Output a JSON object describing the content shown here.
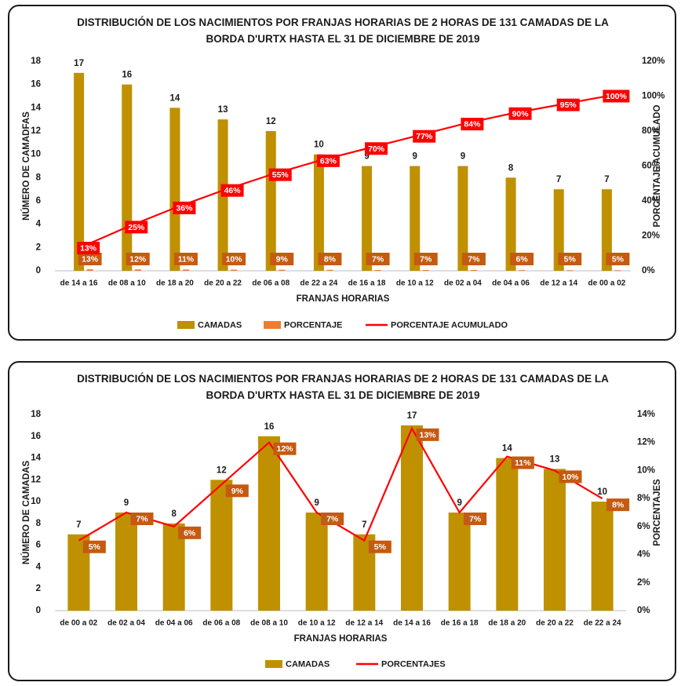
{
  "charts": [
    {
      "title": "DISTRIBUCIÓN DE LOS NACIMIENTOS POR FRANJAS HORARIAS DE 2 HORAS DE 131 CAMADAS DE LA BORDA D'URTX HASTA EL 31 DE DICIEMBRE DE 2019",
      "xlabel": "FRANJAS HORARIAS",
      "ylabel_left": "NÚMERO DE CAMADFAS",
      "ylabel_right": "PORCENTAJE ACUMULADO",
      "legend": [
        "CAMADAS",
        "PORCENTAJE",
        "PORCENTAJE ACUMULADO"
      ]
    },
    {
      "title": "DISTRIBUCIÓN DE LOS NACIMIENTOS POR FRANJAS HORARIAS DE 2 HORAS DE 131 CAMADAS DE LA BORDA D'URTX  HASTA EL 31 DE DICIEMBRE DE 2019",
      "xlabel": "FRANJAS HORARIAS",
      "ylabel_left": "NÚMERO DE CAMADAS",
      "ylabel_right": "PORCENTAJES",
      "legend": [
        "CAMADAS",
        "PORCENTAJES"
      ]
    }
  ],
  "colors": {
    "bar": "#bf9000",
    "pct_bar": "#ed7d31",
    "line": "#ff0000",
    "pct_label_bg": "#c55a11",
    "cum_label_bg": "#ff0000"
  },
  "chart_data": [
    {
      "type": "bar",
      "categories": [
        "de 14 a 16",
        "de 08 a 10",
        "de 18 a 20",
        "de 20 a 22",
        "de 06 a 08",
        "de 22 a 24",
        "de 16 a 18",
        "de 10 a 12",
        "de 02 a 04",
        "de 04 a 06",
        "de 12 a 14",
        "de 00 a 02"
      ],
      "series": [
        {
          "name": "CAMADAS",
          "type": "bar",
          "axis": "left",
          "values": [
            17,
            16,
            14,
            13,
            12,
            10,
            9,
            9,
            9,
            8,
            7,
            7
          ],
          "labels": [
            "17",
            "16",
            "14",
            "13",
            "12",
            "10",
            "9",
            "9",
            "9",
            "8",
            "7",
            "7"
          ]
        },
        {
          "name": "PORCENTAJE",
          "type": "bar",
          "axis": "left",
          "values": [
            0.13,
            0.12,
            0.11,
            0.1,
            0.09,
            0.08,
            0.07,
            0.07,
            0.07,
            0.06,
            0.05,
            0.05
          ],
          "labels": [
            "13%",
            "12%",
            "11%",
            "10%",
            "9%",
            "8%",
            "7%",
            "7%",
            "7%",
            "6%",
            "5%",
            "5%"
          ]
        },
        {
          "name": "PORCENTAJE ACUMULADO",
          "type": "line",
          "axis": "right",
          "values": [
            13,
            25,
            36,
            46,
            55,
            63,
            70,
            77,
            84,
            90,
            95,
            100
          ],
          "labels": [
            "13%",
            "25%",
            "36%",
            "46%",
            "55%",
            "63%",
            "70%",
            "77%",
            "84%",
            "90%",
            "95%",
            "100%"
          ]
        }
      ],
      "ylim_left": [
        0,
        18
      ],
      "yticks_left": [
        "0",
        "2",
        "4",
        "6",
        "8",
        "10",
        "12",
        "14",
        "16",
        "18"
      ],
      "ylim_right": [
        0,
        120
      ],
      "yticks_right": [
        "0%",
        "20%",
        "40%",
        "60%",
        "80%",
        "100%",
        "120%"
      ],
      "grid": false,
      "legend_position": "bottom"
    },
    {
      "type": "bar",
      "categories": [
        "de 00 a 02",
        "de 02 a 04",
        "de 04 a 06",
        "de 06 a 08",
        "de 08 a 10",
        "de 10 a 12",
        "de 12 a 14",
        "de 14 a 16",
        "de 16 a 18",
        "de 18 a 20",
        "de 20 a 22",
        "de 22 a 24"
      ],
      "series": [
        {
          "name": "CAMADAS",
          "type": "bar",
          "axis": "left",
          "values": [
            7,
            9,
            8,
            12,
            16,
            9,
            7,
            17,
            9,
            14,
            13,
            10
          ],
          "labels": [
            "7",
            "9",
            "8",
            "12",
            "16",
            "9",
            "7",
            "17",
            "9",
            "14",
            "13",
            "10"
          ]
        },
        {
          "name": "PORCENTAJES",
          "type": "line",
          "axis": "right",
          "values": [
            5,
            7,
            6,
            9,
            12,
            7,
            5,
            13,
            7,
            11,
            10,
            8
          ],
          "labels": [
            "5%",
            "7%",
            "6%",
            "9%",
            "12%",
            "7%",
            "5%",
            "13%",
            "7%",
            "11%",
            "10%",
            "8%"
          ]
        }
      ],
      "ylim_left": [
        0,
        18
      ],
      "yticks_left": [
        "0",
        "2",
        "4",
        "6",
        "8",
        "10",
        "12",
        "14",
        "16",
        "18"
      ],
      "ylim_right": [
        0,
        14
      ],
      "yticks_right": [
        "0%",
        "2%",
        "4%",
        "6%",
        "8%",
        "10%",
        "12%",
        "14%"
      ],
      "grid": false,
      "legend_position": "bottom"
    }
  ]
}
